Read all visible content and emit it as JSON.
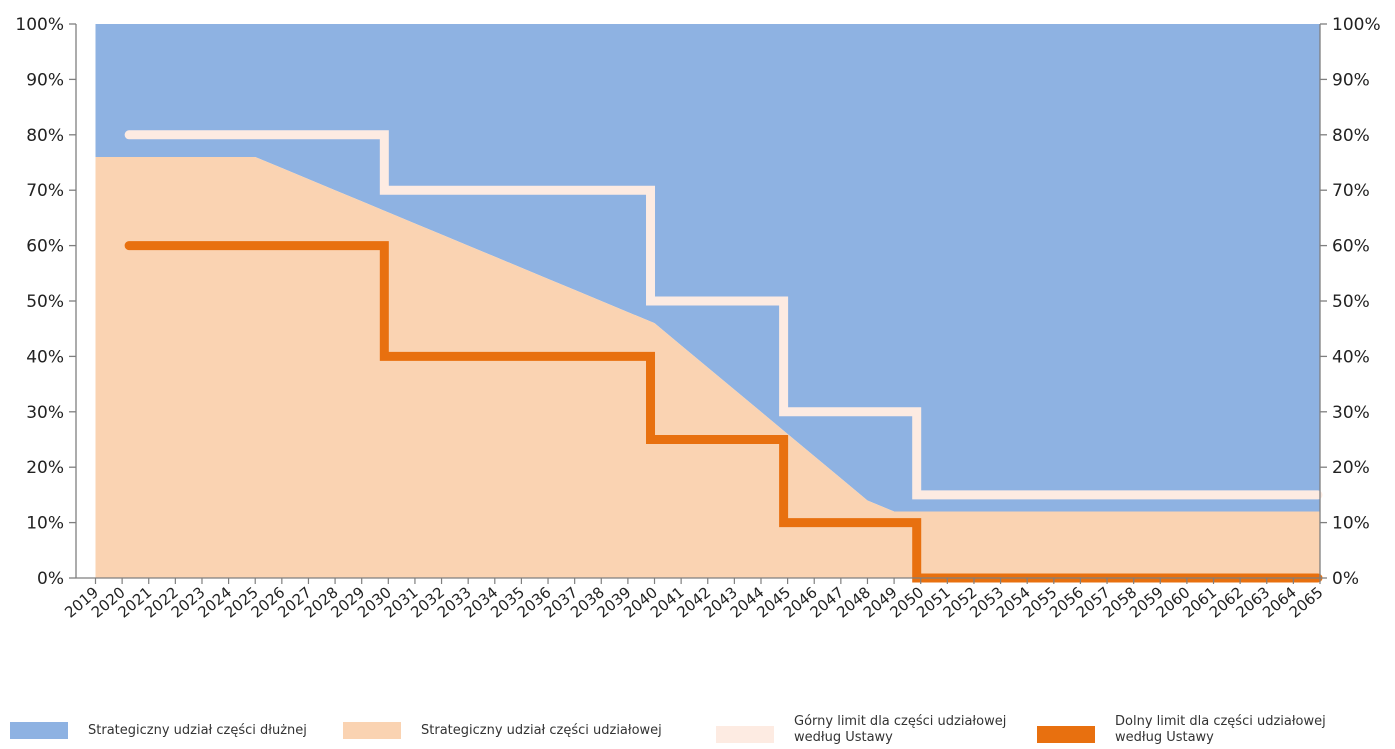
{
  "chart_data": {
    "type": "area",
    "title": "",
    "xlabel": "",
    "ylabel": "",
    "ylim": [
      0,
      100
    ],
    "y_ticks": [
      "0%",
      "10%",
      "20%",
      "30%",
      "40%",
      "50%",
      "60%",
      "70%",
      "80%",
      "90%",
      "100%"
    ],
    "y_tick_values": [
      0,
      10,
      20,
      30,
      40,
      50,
      60,
      70,
      80,
      90,
      100
    ],
    "secondary_y_axis": true,
    "grid": false,
    "legend_position": "bottom",
    "categories": [
      "2019",
      "2020",
      "2021",
      "2022",
      "2023",
      "2024",
      "2025",
      "2026",
      "2027",
      "2028",
      "2029",
      "2030",
      "2031",
      "2032",
      "2033",
      "2034",
      "2035",
      "2036",
      "2037",
      "2038",
      "2039",
      "2040",
      "2041",
      "2042",
      "2043",
      "2044",
      "2045",
      "2046",
      "2047",
      "2048",
      "2049",
      "2050",
      "2051",
      "2052",
      "2053",
      "2054",
      "2055",
      "2056",
      "2057",
      "2058",
      "2059",
      "2060",
      "2061",
      "2062",
      "2063",
      "2064",
      "2065"
    ],
    "series": [
      {
        "name": "Strategiczny udział części dłużnej",
        "kind": "area",
        "color": "#8eb2e2",
        "values": [
          24,
          24,
          24,
          24,
          24,
          24,
          24,
          26,
          28,
          30,
          32,
          34,
          36,
          38,
          40,
          42,
          44,
          46,
          48,
          50,
          52,
          54,
          58,
          62,
          66,
          70,
          74,
          78,
          82,
          86,
          88,
          88,
          88,
          88,
          88,
          88,
          88,
          88,
          88,
          88,
          88,
          88,
          88,
          88,
          88,
          88,
          88
        ]
      },
      {
        "name": "Strategiczny udział części udziałowej",
        "kind": "area",
        "color": "#fad3b2",
        "values": [
          76,
          76,
          76,
          76,
          76,
          76,
          76,
          74,
          72,
          70,
          68,
          66,
          64,
          62,
          60,
          58,
          56,
          54,
          52,
          50,
          48,
          46,
          42,
          38,
          34,
          30,
          26,
          22,
          18,
          14,
          12,
          12,
          12,
          12,
          12,
          12,
          12,
          12,
          12,
          12,
          12,
          12,
          12,
          12,
          12,
          12,
          12
        ]
      },
      {
        "name": "Górny limit dla części udziałowej według Ustawy",
        "kind": "step-line",
        "color": "#fdebe2",
        "values": [
          null,
          80,
          80,
          80,
          80,
          80,
          80,
          80,
          80,
          80,
          80,
          70,
          70,
          70,
          70,
          70,
          70,
          70,
          70,
          70,
          70,
          50,
          50,
          50,
          50,
          50,
          30,
          30,
          30,
          30,
          30,
          15,
          15,
          15,
          15,
          15,
          15,
          15,
          15,
          15,
          15,
          15,
          15,
          15,
          15,
          15,
          15
        ]
      },
      {
        "name": "Dolny limit dla części udziałowej według Ustawy",
        "kind": "step-line",
        "color": "#e8700f",
        "values": [
          null,
          60,
          60,
          60,
          60,
          60,
          60,
          60,
          60,
          60,
          60,
          40,
          40,
          40,
          40,
          40,
          40,
          40,
          40,
          40,
          40,
          25,
          25,
          25,
          25,
          25,
          10,
          10,
          10,
          10,
          10,
          0,
          0,
          0,
          0,
          0,
          0,
          0,
          0,
          0,
          0,
          0,
          0,
          0,
          0,
          0,
          0
        ]
      }
    ]
  },
  "legend": {
    "items": [
      {
        "label": "Strategiczny udział części dłużnej",
        "color": "#8eb2e2"
      },
      {
        "label": "Strategiczny udział części udziałowej",
        "color": "#fad3b2"
      },
      {
        "label": "Górny limit dla części udziałowej\nwedług Ustawy",
        "color": "#fdebe2"
      },
      {
        "label": "Dolny limit dla części udziałowej\nwedług Ustawy",
        "color": "#e8700f"
      }
    ]
  }
}
